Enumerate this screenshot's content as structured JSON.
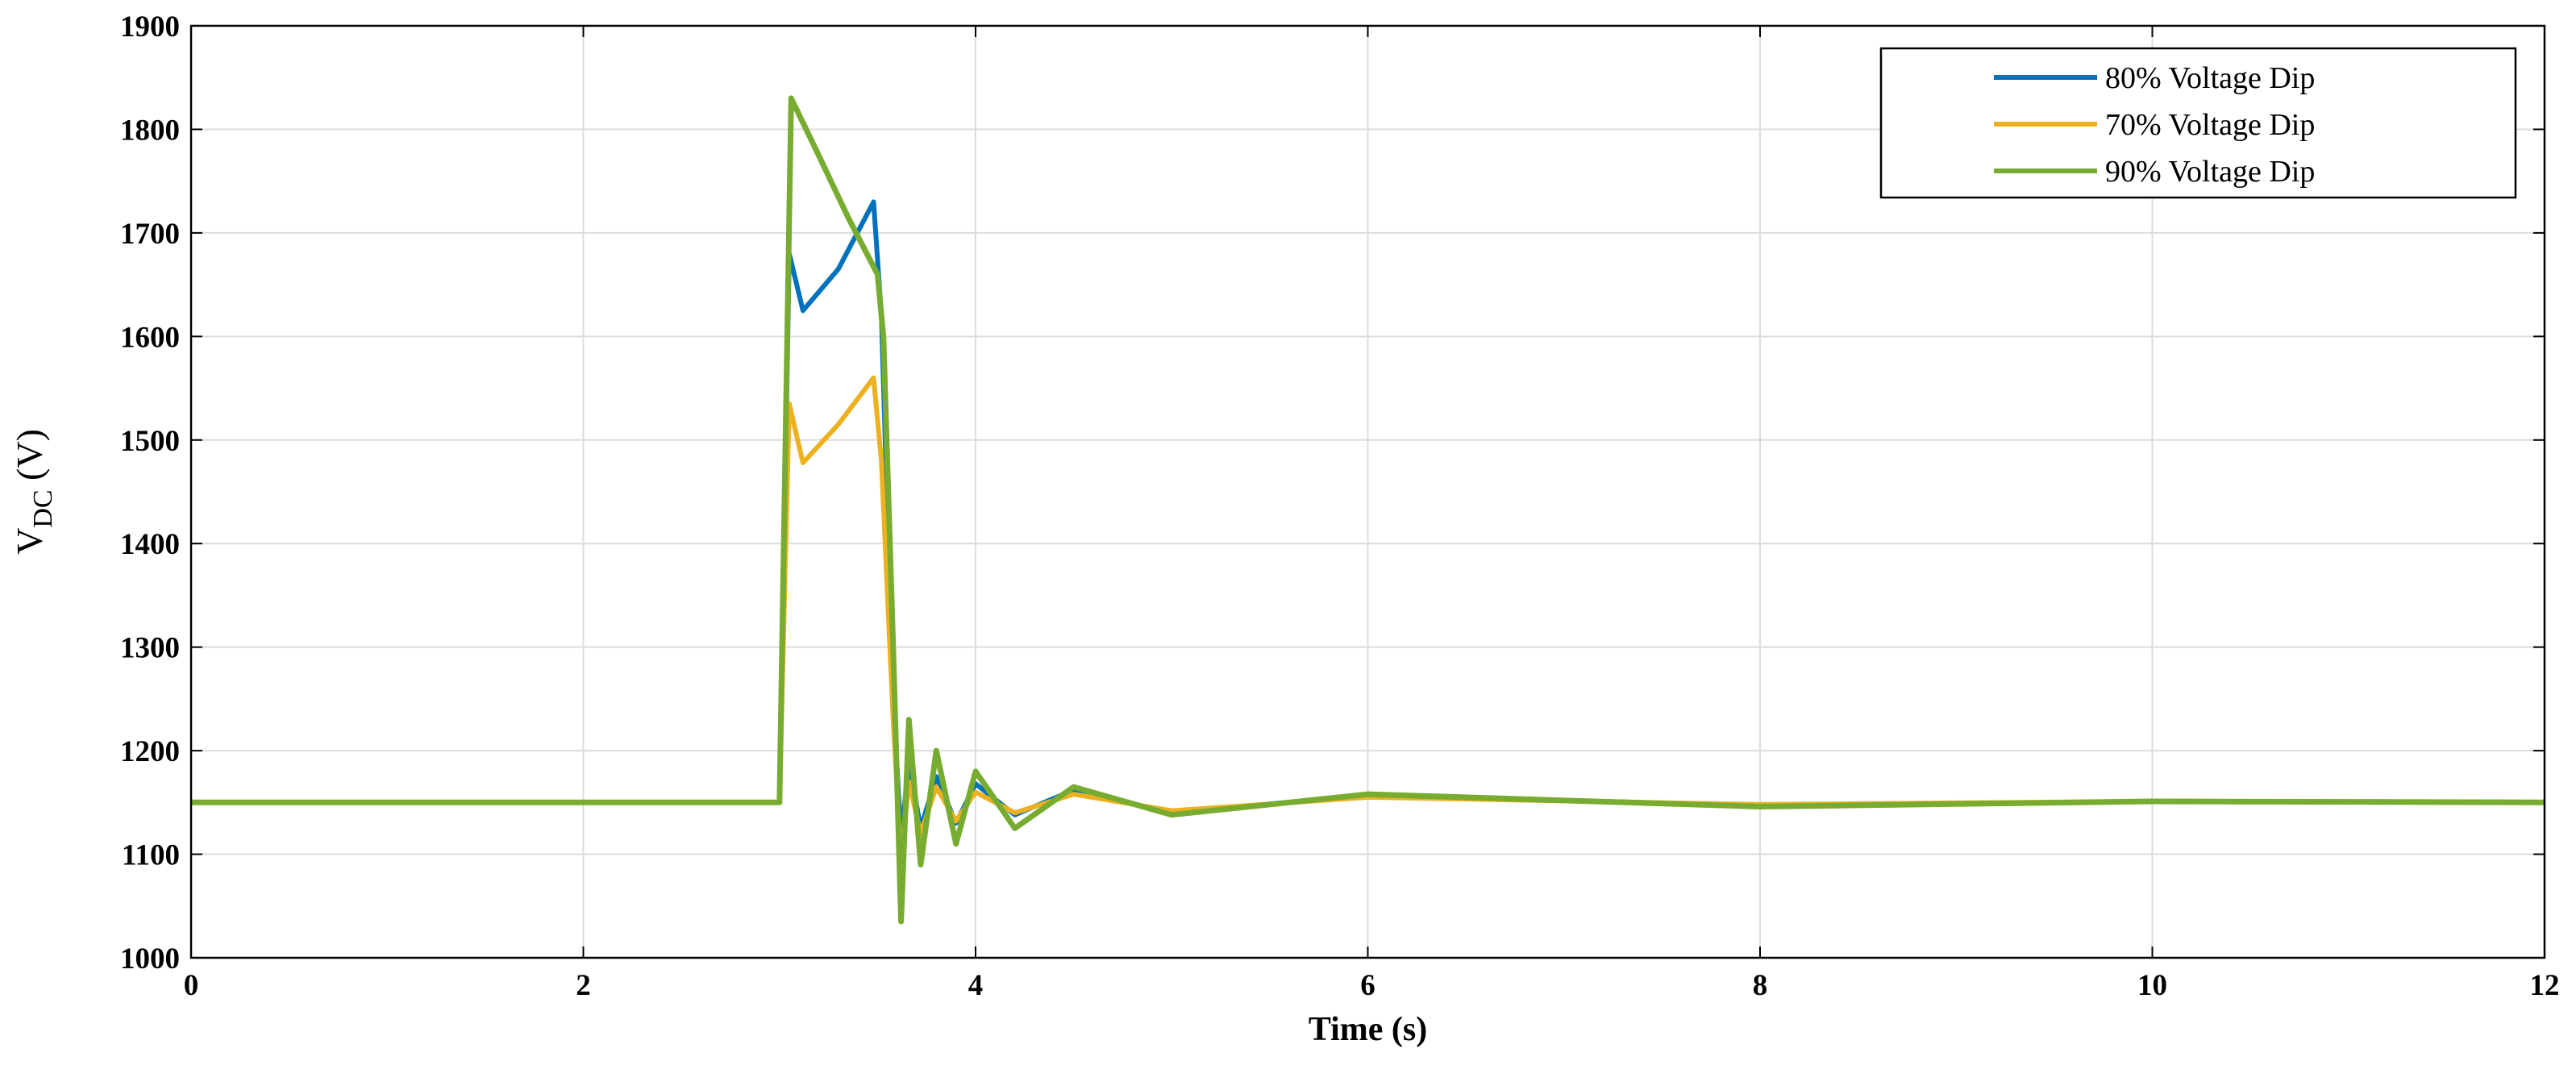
{
  "chart_data": {
    "type": "line",
    "title": "",
    "xlabel": "Time (s)",
    "ylabel": {
      "main": "V",
      "sub": "DC",
      "suffix": " (V)"
    },
    "xlim": [
      0,
      12
    ],
    "ylim": [
      1000,
      1900
    ],
    "xticks": [
      0,
      2,
      4,
      6,
      8,
      10,
      12
    ],
    "yticks": [
      1000,
      1100,
      1200,
      1300,
      1400,
      1500,
      1600,
      1700,
      1800,
      1900
    ],
    "grid": true,
    "legend_position": "top-right",
    "series": [
      {
        "name": "80% Voltage Dip",
        "color": "#0072BD",
        "x": [
          0,
          3.0,
          3.05,
          3.12,
          3.3,
          3.48,
          3.52,
          3.58,
          3.62,
          3.66,
          3.72,
          3.8,
          3.9,
          4.0,
          4.2,
          4.5,
          5.0,
          6.0,
          8.0,
          10.0,
          12.0
        ],
        "y": [
          1150,
          1150,
          1680,
          1625,
          1665,
          1730,
          1620,
          1250,
          1115,
          1190,
          1125,
          1175,
          1130,
          1168,
          1138,
          1162,
          1140,
          1157,
          1147,
          1151,
          1150
        ]
      },
      {
        "name": "70% Voltage Dip",
        "color": "#EDB120",
        "x": [
          0,
          3.0,
          3.05,
          3.12,
          3.3,
          3.48,
          3.52,
          3.58,
          3.62,
          3.66,
          3.72,
          3.8,
          3.9,
          4.0,
          4.2,
          4.5,
          5.0,
          6.0,
          8.0,
          10.0,
          12.0
        ],
        "y": [
          1150,
          1150,
          1535,
          1478,
          1515,
          1560,
          1480,
          1230,
          1095,
          1170,
          1120,
          1165,
          1132,
          1160,
          1140,
          1158,
          1142,
          1155,
          1148,
          1151,
          1150
        ]
      },
      {
        "name": "90% Voltage Dip",
        "color": "#77AC30",
        "x": [
          0,
          3.0,
          3.06,
          3.2,
          3.35,
          3.5,
          3.53,
          3.58,
          3.62,
          3.66,
          3.72,
          3.8,
          3.9,
          4.0,
          4.2,
          4.5,
          5.0,
          6.0,
          8.0,
          10.0,
          12.0
        ],
        "y": [
          1150,
          1150,
          1830,
          1775,
          1715,
          1660,
          1600,
          1300,
          1035,
          1230,
          1090,
          1200,
          1110,
          1180,
          1125,
          1165,
          1138,
          1158,
          1146,
          1151,
          1150
        ]
      }
    ]
  }
}
